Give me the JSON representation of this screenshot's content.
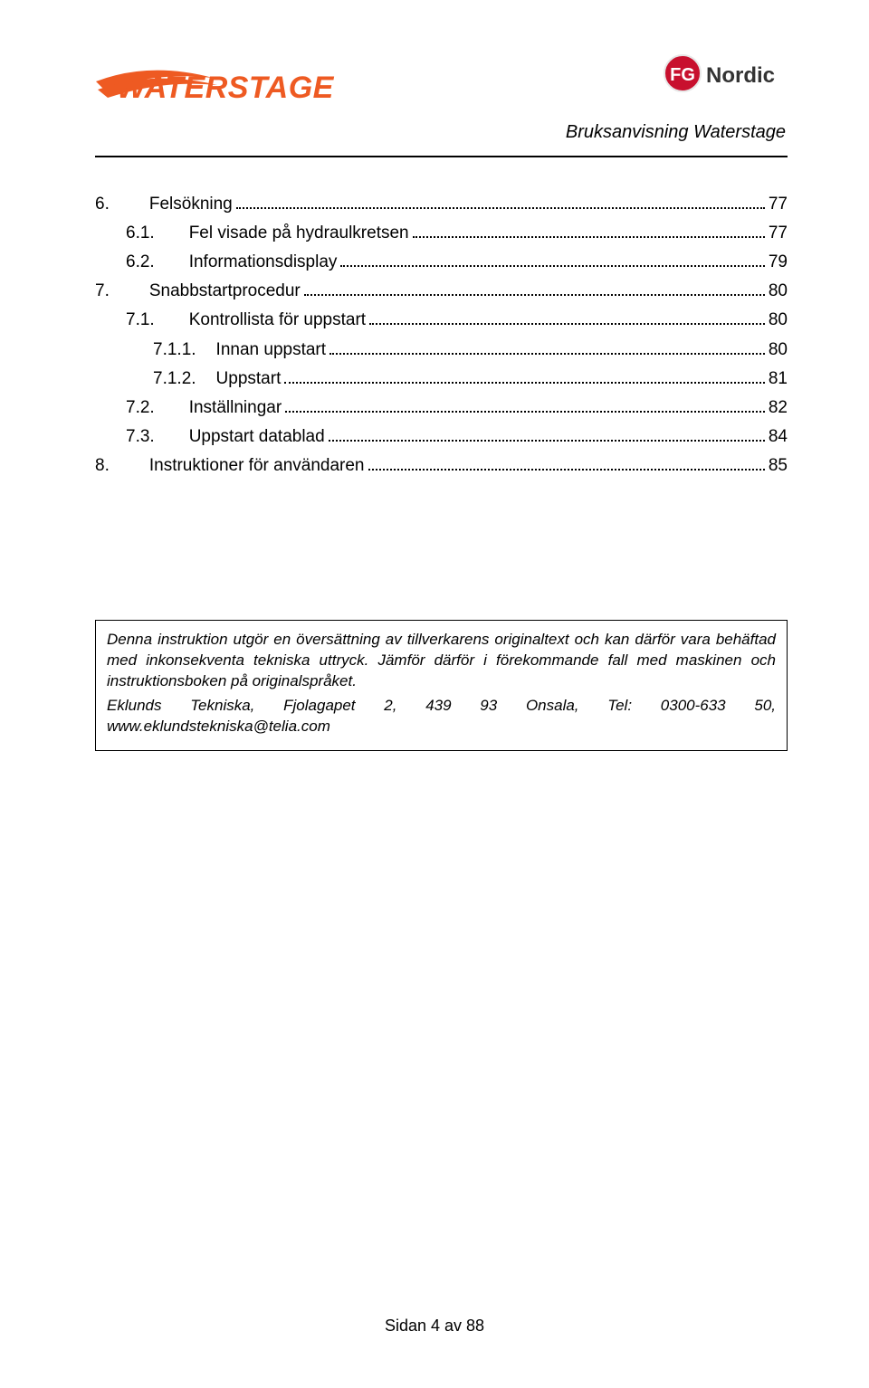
{
  "header": {
    "subtitle": "Bruksanvisning Waterstage",
    "logo_left": {
      "name": "WATERSTAGE",
      "brand_color": "#ee5a22",
      "swoosh_color": "#ee5a22"
    },
    "logo_right": {
      "badge_text": "FG",
      "badge_bg": "#c8102e",
      "badge_text_color": "#ffffff",
      "word": "Nordic",
      "word_color": "#333333"
    }
  },
  "toc": [
    {
      "indent": 0,
      "num": "6.",
      "title": "Felsökning",
      "page": "77"
    },
    {
      "indent": 1,
      "num": "6.1.",
      "title": "Fel visade på hydraulkretsen",
      "page": "77"
    },
    {
      "indent": 1,
      "num": "6.2.",
      "title": "Informationsdisplay",
      "page": "79"
    },
    {
      "indent": 0,
      "num": "7.",
      "title": "Snabbstartprocedur",
      "page": "80"
    },
    {
      "indent": 1,
      "num": "7.1.",
      "title": "Kontrollista för uppstart",
      "page": "80"
    },
    {
      "indent": 2,
      "num": "7.1.1.",
      "title": "Innan uppstart",
      "page": "80"
    },
    {
      "indent": 2,
      "num": "7.1.2.",
      "title": "Uppstart",
      "page": "81"
    },
    {
      "indent": 1,
      "num": "7.2.",
      "title": "Inställningar",
      "page": "82"
    },
    {
      "indent": 1,
      "num": "7.3.",
      "title": "Uppstart datablad",
      "page": "84"
    },
    {
      "indent": 0,
      "num": "8.",
      "title": "Instruktioner för användaren",
      "page": "85"
    }
  ],
  "note": {
    "p1": "Denna instruktion utgör en översättning av tillverkarens originaltext och kan därför vara behäftad med inkonsekventa tekniska uttryck. Jämför därför i förekommande fall med maskinen och instruktionsboken på originalspråket.",
    "p2": "Eklunds Tekniska, Fjolagapet 2, 439 93 Onsala, Tel: 0300-633 50, www.eklundstekniska@telia.com"
  },
  "footer": {
    "text": "Sidan 4 av 88"
  },
  "colors": {
    "text": "#000000",
    "background": "#ffffff",
    "rule": "#000000"
  }
}
